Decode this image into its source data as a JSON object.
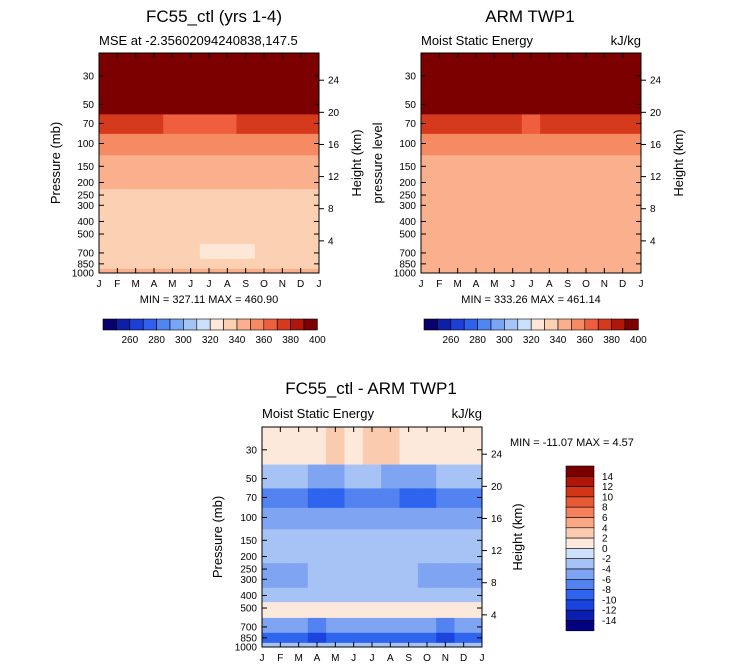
{
  "colors": {
    "mse_scale": [
      "#08006b",
      "#0c1fa6",
      "#1c3fd6",
      "#2f60ee",
      "#4f86f2",
      "#78a5f4",
      "#a4c4f6",
      "#cce0fb",
      "#fde8d8",
      "#fcd0b2",
      "#fbb08d",
      "#f68a62",
      "#ef5f3d",
      "#d53a1d",
      "#b0170b",
      "#7c0000"
    ],
    "diff_scale": [
      "#000080",
      "#0a1fb0",
      "#1a44de",
      "#2f64ee",
      "#5283f0",
      "#7fa4f2",
      "#a7c3f5",
      "#cfe0fa",
      "#fce9dc",
      "#fbcbb0",
      "#f9a886",
      "#f4805c",
      "#e85a35",
      "#d23518",
      "#ad1608",
      "#7a0000"
    ]
  },
  "top_left": {
    "title": "FC55_ctl (yrs 1-4)",
    "subtitle": "MSE at -2.35602094240838,147.5",
    "stats": "MIN = 327.11  MAX = 460.90"
  },
  "top_right": {
    "title": "ARM TWP1",
    "subtitle_left": "Moist Static Energy",
    "subtitle_right": "kJ/kg",
    "stats": "MIN = 333.26  MAX = 461.14"
  },
  "bottom": {
    "title": "FC55_ctl - ARM TWP1",
    "subtitle_left": "Moist Static Energy",
    "subtitle_right": "kJ/kg",
    "stats": "MIN = -11.07  MAX =    4.57"
  },
  "axes": {
    "ylabel": "Pressure (mb)",
    "ylabel_alt": "pressure level",
    "y2label": "Height (km)"
  },
  "chart_data": [
    {
      "type": "heatmap",
      "panel": "top_left",
      "title": "FC55_ctl (yrs 1-4)",
      "ylabel": "Pressure (mb)",
      "y2label": "Height (km)",
      "x_ticks": [
        "J",
        "F",
        "M",
        "A",
        "M",
        "J",
        "J",
        "A",
        "S",
        "O",
        "N",
        "D",
        "J"
      ],
      "y_ticks": [
        30,
        50,
        70,
        100,
        150,
        200,
        250,
        300,
        400,
        500,
        700,
        850,
        1000
      ],
      "y2_ticks": [
        24,
        20,
        16,
        12,
        8,
        4
      ],
      "pressure_levels": [
        1000,
        850,
        700,
        500,
        400,
        300,
        250,
        200,
        150,
        100,
        70,
        50,
        30
      ],
      "months": [
        "J",
        "F",
        "M",
        "A",
        "M",
        "J",
        "J",
        "A",
        "S",
        "O",
        "N",
        "D",
        "J"
      ],
      "values": [
        [
          343,
          343,
          343,
          343,
          343,
          343,
          343,
          343,
          343,
          343,
          343,
          343,
          343
        ],
        [
          334,
          334,
          333,
          332,
          332,
          333,
          332,
          332,
          333,
          334,
          334,
          334,
          334
        ],
        [
          334,
          333,
          331,
          331,
          332,
          331,
          329,
          329,
          329,
          330,
          332,
          333,
          334
        ],
        [
          334,
          334,
          334,
          334,
          334,
          334,
          334,
          334,
          334,
          334,
          334,
          334,
          334
        ],
        [
          335,
          335,
          335,
          335,
          335,
          335,
          335,
          335,
          335,
          335,
          335,
          335,
          335
        ],
        [
          336,
          336,
          336,
          336,
          336,
          336,
          336,
          336,
          336,
          336,
          336,
          336,
          336
        ],
        [
          338,
          338,
          338,
          338,
          338,
          338,
          338,
          338,
          338,
          338,
          338,
          338,
          338
        ],
        [
          344,
          344,
          343,
          342,
          341,
          340,
          340,
          341,
          341,
          342,
          343,
          344,
          344
        ],
        [
          345,
          345,
          345,
          345,
          345,
          345,
          345,
          345,
          345,
          345,
          345,
          345,
          345
        ],
        [
          352,
          352,
          352,
          352,
          352,
          352,
          352,
          352,
          352,
          352,
          352,
          352,
          352
        ],
        [
          374,
          374,
          372,
          370,
          368,
          366,
          366,
          368,
          370,
          372,
          374,
          374,
          374
        ],
        [
          420,
          418,
          416,
          414,
          412,
          410,
          410,
          412,
          414,
          416,
          418,
          420,
          420
        ],
        [
          455,
          455,
          455,
          455,
          455,
          455,
          455,
          455,
          455,
          455,
          455,
          455,
          455
        ]
      ],
      "min": 327.11,
      "max": 460.9,
      "colorbar_ticks": [
        260,
        280,
        300,
        320,
        340,
        360,
        380,
        400
      ]
    },
    {
      "type": "heatmap",
      "panel": "top_right",
      "title": "ARM TWP1",
      "ylabel": "pressure level",
      "y2label": "Height (km)",
      "x_ticks": [
        "J",
        "F",
        "M",
        "A",
        "M",
        "J",
        "J",
        "A",
        "S",
        "O",
        "N",
        "D",
        "J"
      ],
      "y_ticks": [
        30,
        50,
        70,
        100,
        150,
        200,
        250,
        300,
        400,
        500,
        700,
        850,
        1000
      ],
      "y2_ticks": [
        24,
        20,
        16,
        12,
        8,
        4
      ],
      "pressure_levels": [
        1000,
        850,
        700,
        500,
        400,
        300,
        250,
        200,
        150,
        100,
        70,
        50,
        30
      ],
      "months": [
        "J",
        "F",
        "M",
        "A",
        "M",
        "J",
        "J",
        "A",
        "S",
        "O",
        "N",
        "D",
        "J"
      ],
      "values": [
        [
          346,
          346,
          347,
          347,
          346,
          346,
          346,
          346,
          346,
          346,
          346,
          346,
          346
        ],
        [
          344,
          344,
          345,
          345,
          344,
          344,
          344,
          344,
          344,
          344,
          344,
          344,
          344
        ],
        [
          342,
          342,
          342,
          342,
          342,
          342,
          342,
          342,
          342,
          342,
          342,
          342,
          342
        ],
        [
          341,
          341,
          341,
          341,
          341,
          341,
          341,
          341,
          341,
          341,
          341,
          341,
          341
        ],
        [
          341,
          341,
          342,
          342,
          342,
          341,
          341,
          341,
          341,
          341,
          341,
          341,
          341
        ],
        [
          341,
          341,
          341,
          341,
          341,
          342,
          342,
          342,
          342,
          342,
          341,
          341,
          341
        ],
        [
          342,
          342,
          342,
          342,
          342,
          342,
          342,
          342,
          342,
          342,
          342,
          342,
          342
        ],
        [
          343,
          343,
          343,
          343,
          343,
          343,
          343,
          343,
          343,
          343,
          343,
          343,
          343
        ],
        [
          347,
          347,
          347,
          347,
          347,
          347,
          347,
          347,
          347,
          347,
          347,
          347,
          347
        ],
        [
          355,
          355,
          355,
          355,
          355,
          355,
          355,
          355,
          355,
          355,
          355,
          355,
          355
        ],
        [
          377,
          377,
          375,
          373,
          371,
          370,
          369,
          370,
          372,
          374,
          376,
          377,
          377
        ],
        [
          425,
          423,
          421,
          419,
          417,
          416,
          415,
          416,
          418,
          420,
          422,
          424,
          425
        ],
        [
          456,
          456,
          456,
          456,
          456,
          456,
          456,
          456,
          456,
          456,
          456,
          456,
          456
        ]
      ],
      "min": 333.26,
      "max": 461.14,
      "colorbar_ticks": [
        260,
        280,
        300,
        320,
        340,
        360,
        380,
        400
      ]
    },
    {
      "type": "heatmap",
      "panel": "bottom",
      "title": "FC55_ctl - ARM TWP1",
      "ylabel": "Pressure (mb)",
      "y2label": "Height (km)",
      "x_ticks": [
        "J",
        "F",
        "M",
        "A",
        "M",
        "J",
        "J",
        "A",
        "S",
        "O",
        "N",
        "D",
        "J"
      ],
      "y_ticks": [
        30,
        50,
        70,
        100,
        150,
        200,
        250,
        300,
        400,
        500,
        700,
        850,
        1000
      ],
      "y2_ticks": [
        24,
        20,
        16,
        12,
        8,
        4
      ],
      "pressure_levels": [
        1000,
        850,
        700,
        500,
        400,
        300,
        250,
        200,
        150,
        100,
        70,
        50,
        30
      ],
      "months": [
        "J",
        "F",
        "M",
        "A",
        "M",
        "J",
        "J",
        "A",
        "S",
        "O",
        "N",
        "D",
        "J"
      ],
      "values": [
        [
          -3,
          -3,
          -4,
          -4,
          -4,
          -3,
          -3,
          -3,
          -3,
          -3,
          -4,
          -3,
          -3
        ],
        [
          -9,
          -9,
          -10,
          -11,
          -10,
          -9,
          -9,
          -9,
          -9,
          -10,
          -11,
          -10,
          -9
        ],
        [
          -5,
          -5,
          -6,
          -7,
          -6,
          -5,
          -5,
          -5,
          -5,
          -6,
          -7,
          -6,
          -5
        ],
        [
          0.5,
          0.5,
          0.5,
          0.5,
          0.5,
          0.5,
          0.5,
          0.5,
          0.5,
          0.5,
          0.5,
          0.5,
          0.5
        ],
        [
          -3,
          -3,
          -4,
          -3,
          -3,
          -3,
          -3,
          -3,
          -3,
          -4,
          -3,
          -3,
          -3
        ],
        [
          -5,
          -5,
          -5,
          -3,
          -3,
          -3,
          -3,
          -3,
          -3,
          -5,
          -5,
          -5,
          -5
        ],
        [
          -5,
          -5,
          -5,
          -3,
          -3,
          -3,
          -3,
          -3,
          -3,
          -5,
          -5,
          -5,
          -5
        ],
        [
          -3,
          -3,
          -3,
          -3,
          -3,
          -3,
          -3,
          -3,
          -3,
          -3,
          -3,
          -3,
          -3
        ],
        [
          -3,
          -3,
          -3,
          -3,
          -3,
          -3,
          -3,
          -3,
          -3,
          -3,
          -3,
          -3,
          -3
        ],
        [
          -5,
          -5,
          -5,
          -5,
          -5,
          -5,
          -5,
          -5,
          -5,
          -5,
          -5,
          -5,
          -5
        ],
        [
          -7,
          -7,
          -8,
          -9,
          -9,
          -8,
          -7,
          -8,
          -9,
          -9,
          -8,
          -7,
          -7
        ],
        [
          -3,
          -3,
          -3,
          -5,
          -5,
          -3,
          -3,
          -5,
          -5,
          -5,
          -3,
          -3,
          -3
        ],
        [
          0.5,
          0.5,
          0.5,
          1,
          2,
          1,
          3,
          2,
          1,
          1,
          0.5,
          0.5,
          0.5
        ]
      ],
      "min": -11.07,
      "max": 4.57,
      "colorbar_ticks": [
        14,
        12,
        10,
        8,
        6,
        4,
        2,
        0,
        -2,
        -4,
        -6,
        -8,
        -10,
        -12,
        -14
      ]
    }
  ]
}
